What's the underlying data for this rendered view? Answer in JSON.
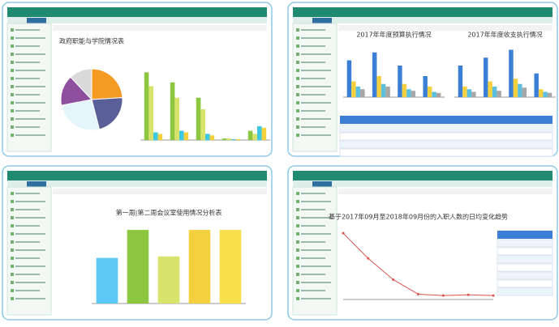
{
  "panels": [
    {
      "charts": [
        {
          "type": "pie",
          "title": "政府职能与学院情况表",
          "values": [
            24,
            22,
            26,
            16,
            12
          ],
          "colors": [
            "#f59a23",
            "#5b5f97",
            "#e4f5fb",
            "#8e4f9e",
            "#d9d9d9"
          ]
        },
        {
          "type": "bar",
          "ylim": [
            0,
            100
          ],
          "series": [
            {
              "color": "#8dc63f",
              "values": [
                88,
                75,
                55,
                2,
                12
              ]
            },
            {
              "color": "#d7e36b",
              "values": [
                70,
                55,
                40,
                2,
                8
              ]
            },
            {
              "color": "#3cc8e0",
              "values": [
                10,
                12,
                8,
                1,
                18
              ]
            },
            {
              "color": "#f4d03f",
              "values": [
                8,
                10,
                6,
                1,
                16
              ]
            }
          ]
        }
      ]
    },
    {
      "charts": [
        {
          "type": "bar",
          "title": "2017年年度预算执行情况",
          "ylim": [
            0,
            100
          ],
          "series": [
            {
              "color": "#3a7fd5",
              "values": [
                70,
                85,
                60,
                40
              ]
            },
            {
              "color": "#f4d03f",
              "values": [
                30,
                40,
                25,
                20
              ]
            },
            {
              "color": "#5bc0de",
              "values": [
                20,
                25,
                15,
                10
              ]
            },
            {
              "color": "#a6a6a6",
              "values": [
                15,
                20,
                12,
                8
              ]
            }
          ]
        },
        {
          "type": "bar",
          "title": "2017年年度收支执行情况",
          "ylim": [
            0,
            100
          ],
          "series": [
            {
              "color": "#3a7fd5",
              "values": [
                60,
                75,
                90,
                45
              ]
            },
            {
              "color": "#f4d03f",
              "values": [
                20,
                30,
                35,
                15
              ]
            },
            {
              "color": "#5bc0de",
              "values": [
                15,
                20,
                25,
                10
              ]
            },
            {
              "color": "#a6a6a6",
              "values": [
                10,
                12,
                18,
                8
              ]
            }
          ]
        }
      ]
    },
    {
      "charts": [
        {
          "type": "bar",
          "title": "第一周|第二周会议室使用情况分析表",
          "ylim": [
            0,
            110
          ],
          "series": [
            {
              "colors": [
                "#5bc8f5",
                "#8dc63f",
                "#d7e36b",
                "#f4d03f",
                "#f7e04a"
              ],
              "values": [
                62,
                100,
                64,
                100,
                100
              ]
            }
          ]
        }
      ]
    },
    {
      "charts": [
        {
          "type": "line",
          "title": "基于2017年09月至2018年09月份的入职人数的日均变化趋势",
          "color": "#d9534f",
          "ylim": [
            0,
            110
          ],
          "values": [
            100,
            62,
            30,
            8,
            6,
            7,
            6
          ]
        }
      ]
    }
  ]
}
